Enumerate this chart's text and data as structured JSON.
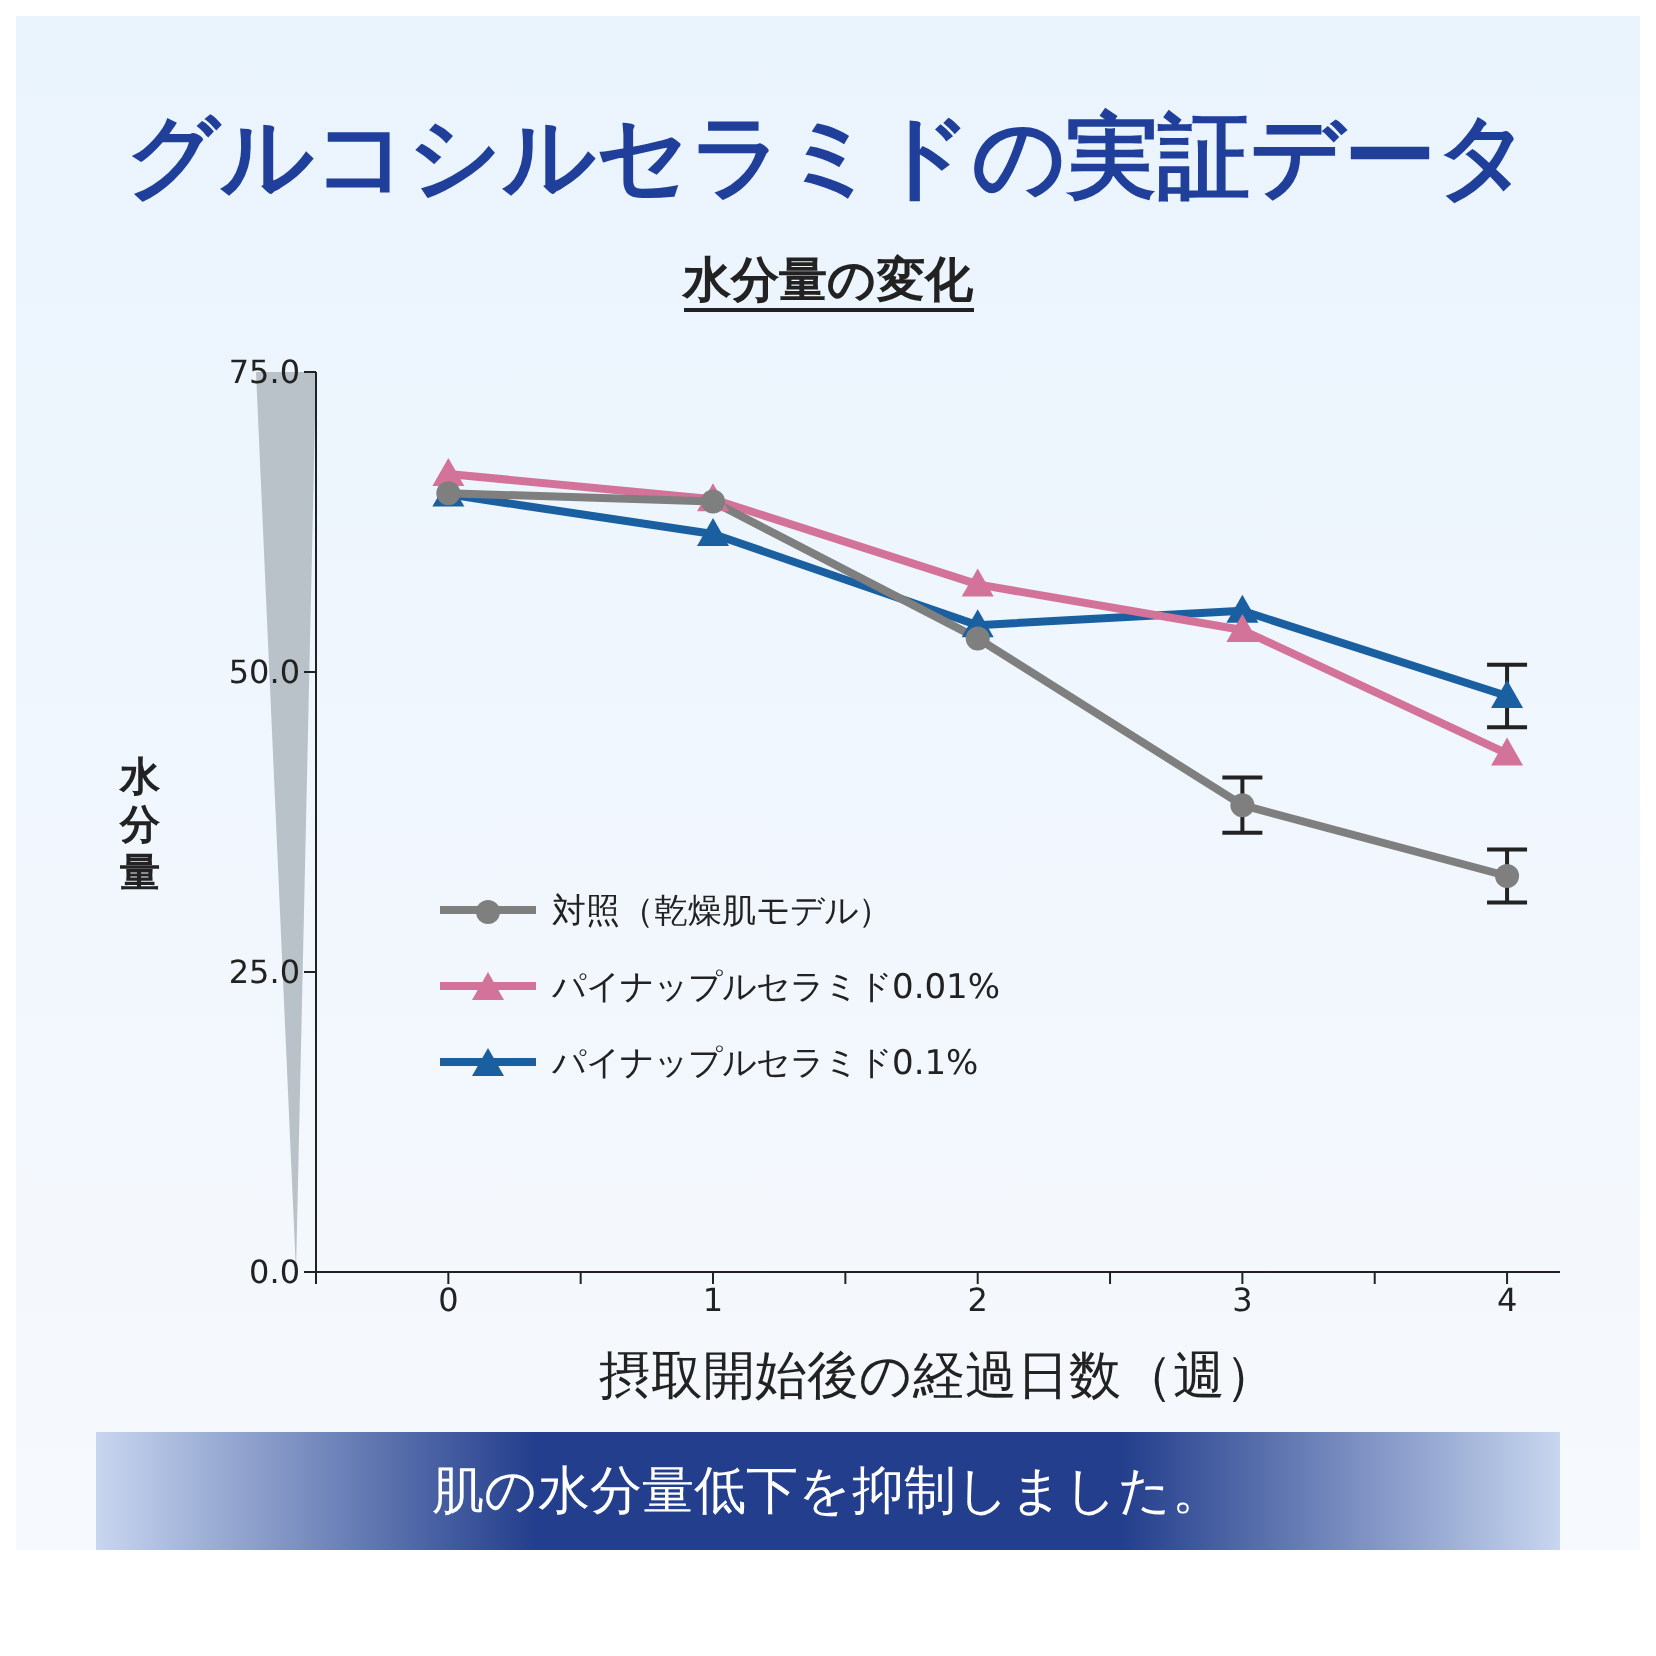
{
  "chart_data": {
    "type": "line",
    "title": "グルコシルセラミドの実証データ",
    "subtitle": "水分量の変化",
    "xlabel": "摂取開始後の経過日数（週）",
    "ylabel": "水分量",
    "x": [
      0,
      1,
      2,
      3,
      4
    ],
    "xlim": [
      -0.5,
      4.2
    ],
    "xticks": [
      {
        "value": -0.5,
        "label": null
      },
      0,
      {
        "value": 0.5,
        "label": null
      },
      1,
      {
        "value": 1.5,
        "label": null
      },
      2,
      {
        "value": 2.5,
        "label": null
      },
      3,
      {
        "value": 3.5,
        "label": null
      },
      4
    ],
    "ylim": [
      0,
      75
    ],
    "yticks": [
      {
        "value": 0,
        "label": "0.0"
      },
      {
        "value": 25,
        "label": "25.0"
      },
      {
        "value": 50,
        "label": "50.0"
      },
      {
        "value": 75,
        "label": "75.0"
      }
    ],
    "grid": false,
    "legend": "left",
    "line_style": "solid",
    "series": [
      {
        "name": "対照（乾燥肌モデル）",
        "color": "#7f7f7f",
        "marker": "circle",
        "values": [
          64.9,
          64.2,
          52.8,
          38.9,
          33.0
        ],
        "errors": [
          null,
          null,
          null,
          2.3,
          2.2
        ]
      },
      {
        "name": "パイナップルセラミド0.01%",
        "color": "#d4739a",
        "marker": "triangle",
        "values": [
          66.5,
          64.4,
          57.3,
          53.5,
          43.2
        ]
      },
      {
        "name": "パイナップルセラミド0.1%",
        "color": "#1a5fa0",
        "marker": "triangle",
        "values": [
          64.8,
          61.5,
          53.9,
          55.1,
          48.0
        ],
        "errors": [
          null,
          null,
          null,
          null,
          2.6
        ]
      }
    ],
    "annotations": [
      "肌の水分量低下を抑制しました。"
    ]
  }
}
